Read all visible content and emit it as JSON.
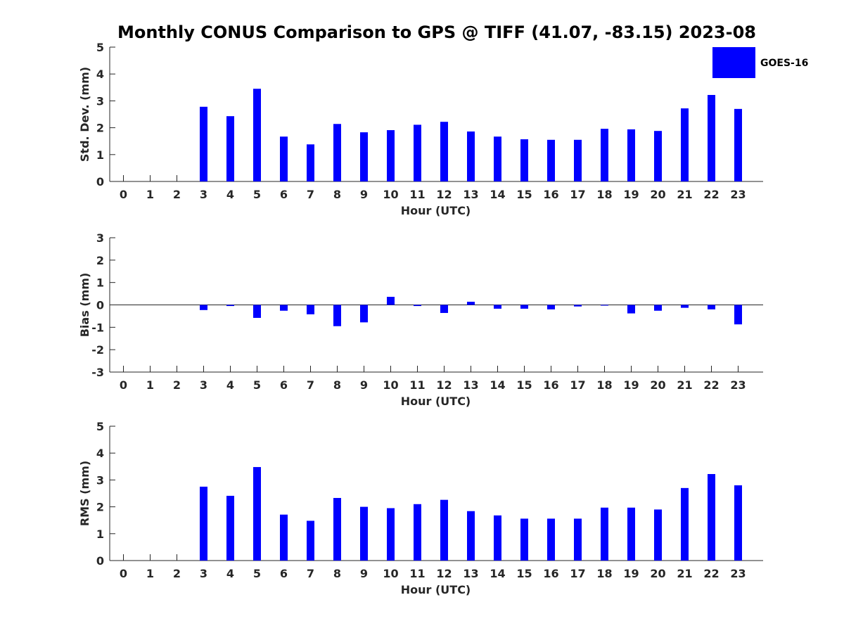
{
  "figure": {
    "title": "Monthly CONUS Comparison to GPS @ TIFF (41.07, -83.15) 2023-08",
    "bar_color": "#0000ff",
    "axis_color": "#262626",
    "legend": {
      "label": "GOES-16",
      "position": "top-right"
    }
  },
  "chart_data": [
    {
      "type": "bar",
      "title": "",
      "xlabel": "Hour (UTC)",
      "ylabel": "Std. Dev. (mm)",
      "ylim": [
        0,
        5
      ],
      "yticks": [
        0,
        1,
        2,
        3,
        4,
        5
      ],
      "categories": [
        "0",
        "1",
        "2",
        "3",
        "4",
        "5",
        "6",
        "7",
        "8",
        "9",
        "10",
        "11",
        "12",
        "13",
        "14",
        "15",
        "16",
        "17",
        "18",
        "19",
        "20",
        "21",
        "22",
        "23"
      ],
      "series": [
        {
          "name": "GOES-16",
          "values": [
            null,
            null,
            null,
            2.78,
            2.43,
            3.45,
            1.67,
            1.38,
            2.14,
            1.83,
            1.91,
            2.11,
            2.22,
            1.86,
            1.67,
            1.57,
            1.55,
            1.55,
            1.96,
            1.94,
            1.88,
            2.72,
            3.22,
            2.7
          ]
        }
      ]
    },
    {
      "type": "bar",
      "title": "",
      "xlabel": "Hour (UTC)",
      "ylabel": "Bias (mm)",
      "ylim": [
        -3,
        3
      ],
      "yticks": [
        -3,
        -2,
        -1,
        0,
        1,
        2,
        3
      ],
      "categories": [
        "0",
        "1",
        "2",
        "3",
        "4",
        "5",
        "6",
        "7",
        "8",
        "9",
        "10",
        "11",
        "12",
        "13",
        "14",
        "15",
        "16",
        "17",
        "18",
        "19",
        "20",
        "21",
        "22",
        "23"
      ],
      "series": [
        {
          "name": "GOES-16",
          "values": [
            null,
            null,
            null,
            -0.23,
            -0.05,
            -0.58,
            -0.26,
            -0.42,
            -0.95,
            -0.78,
            0.36,
            -0.05,
            -0.36,
            0.14,
            -0.17,
            -0.17,
            -0.2,
            -0.07,
            -0.01,
            -0.38,
            -0.26,
            -0.13,
            -0.2,
            -0.87
          ]
        }
      ]
    },
    {
      "type": "bar",
      "title": "",
      "xlabel": "Hour (UTC)",
      "ylabel": "RMS (mm)",
      "ylim": [
        0,
        5
      ],
      "yticks": [
        0,
        1,
        2,
        3,
        4,
        5
      ],
      "categories": [
        "0",
        "1",
        "2",
        "3",
        "4",
        "5",
        "6",
        "7",
        "8",
        "9",
        "10",
        "11",
        "12",
        "13",
        "14",
        "15",
        "16",
        "17",
        "18",
        "19",
        "20",
        "21",
        "22",
        "23"
      ],
      "series": [
        {
          "name": "GOES-16",
          "values": [
            null,
            null,
            null,
            2.75,
            2.41,
            3.48,
            1.71,
            1.48,
            2.33,
            2.0,
            1.95,
            2.1,
            2.26,
            1.84,
            1.68,
            1.56,
            1.56,
            1.56,
            1.97,
            1.97,
            1.9,
            2.7,
            3.22,
            2.8
          ]
        }
      ]
    }
  ]
}
